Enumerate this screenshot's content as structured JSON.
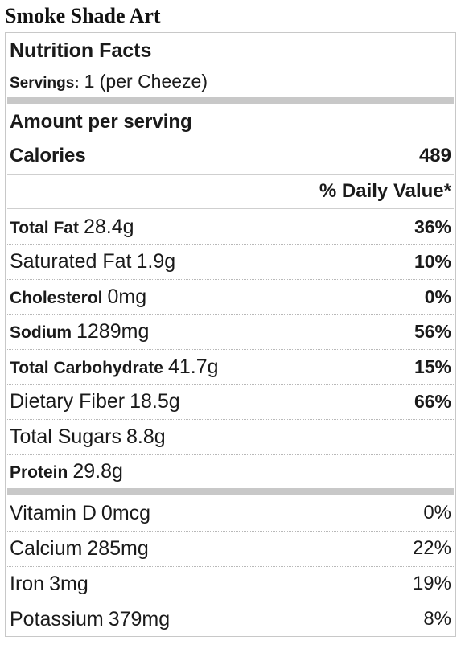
{
  "title": "Smoke Shade Art",
  "label": {
    "heading": "Nutrition Facts",
    "servings_label": "Servings:",
    "servings_value": "1 (per Cheeze)",
    "amount_per_serving": "Amount per serving",
    "calories_label": "Calories",
    "calories_value": "489",
    "daily_value_header": "% Daily Value*",
    "nutrients": [
      {
        "name": "Total Fat",
        "amount": "28.4g",
        "dv": "36%",
        "bold": true
      },
      {
        "name": "Saturated Fat",
        "amount": "1.9g",
        "dv": "10%",
        "bold": false
      },
      {
        "name": "Cholesterol",
        "amount": "0mg",
        "dv": "0%",
        "bold": true
      },
      {
        "name": "Sodium",
        "amount": "1289mg",
        "dv": "56%",
        "bold": true
      },
      {
        "name": "Total Carbohydrate",
        "amount": "41.7g",
        "dv": "15%",
        "bold": true
      },
      {
        "name": "Dietary Fiber",
        "amount": "18.5g",
        "dv": "66%",
        "bold": false
      },
      {
        "name": "Total Sugars",
        "amount": "8.8g",
        "dv": "",
        "bold": false
      },
      {
        "name": "Protein",
        "amount": "29.8g",
        "dv": "",
        "bold": true
      }
    ],
    "vitamins": [
      {
        "name": "Vitamin D",
        "amount": "0mcg",
        "dv": "0%"
      },
      {
        "name": "Calcium",
        "amount": "285mg",
        "dv": "22%"
      },
      {
        "name": "Iron",
        "amount": "3mg",
        "dv": "19%"
      },
      {
        "name": "Potassium",
        "amount": "379mg",
        "dv": "8%"
      }
    ]
  }
}
